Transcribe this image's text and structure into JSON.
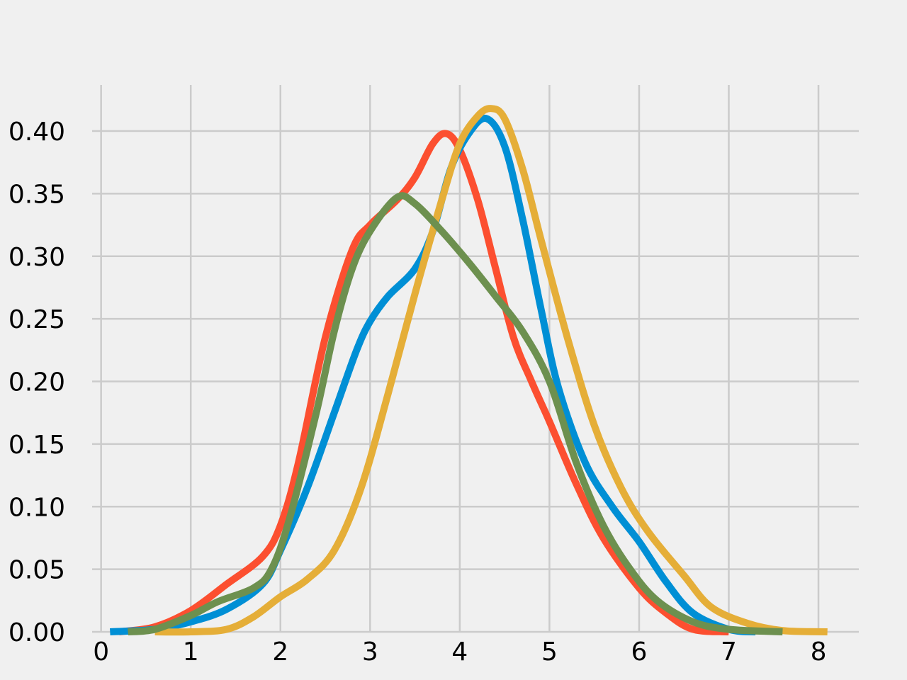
{
  "chart_data": {
    "type": "line",
    "title": "",
    "xlabel": "",
    "ylabel": "",
    "xlim": [
      -0.1,
      8.45
    ],
    "ylim": [
      0,
      0.4368
    ],
    "x_ticks": [
      0,
      1,
      2,
      3,
      4,
      5,
      6,
      7,
      8
    ],
    "x_tick_labels": [
      "0",
      "1",
      "2",
      "3",
      "4",
      "5",
      "6",
      "7",
      "8"
    ],
    "y_ticks": [
      0.0,
      0.05,
      0.1,
      0.15,
      0.2,
      0.25,
      0.3,
      0.35,
      0.4
    ],
    "y_tick_labels": [
      "0.00",
      "0.05",
      "0.10",
      "0.15",
      "0.20",
      "0.25",
      "0.30",
      "0.35",
      "0.40"
    ],
    "grid": true,
    "legend": "none",
    "series": [
      {
        "color": "#fc4f30",
        "points": [
          [
            0.2,
            0.0
          ],
          [
            0.6,
            0.004
          ],
          [
            1.0,
            0.017
          ],
          [
            1.4,
            0.038
          ],
          [
            1.8,
            0.06
          ],
          [
            2.0,
            0.085
          ],
          [
            2.2,
            0.135
          ],
          [
            2.5,
            0.235
          ],
          [
            2.8,
            0.305
          ],
          [
            3.0,
            0.325
          ],
          [
            3.3,
            0.345
          ],
          [
            3.5,
            0.363
          ],
          [
            3.7,
            0.39
          ],
          [
            3.85,
            0.398
          ],
          [
            4.0,
            0.385
          ],
          [
            4.2,
            0.345
          ],
          [
            4.4,
            0.29
          ],
          [
            4.6,
            0.235
          ],
          [
            4.8,
            0.2
          ],
          [
            5.0,
            0.168
          ],
          [
            5.3,
            0.118
          ],
          [
            5.6,
            0.075
          ],
          [
            6.0,
            0.035
          ],
          [
            6.3,
            0.015
          ],
          [
            6.6,
            0.002
          ],
          [
            7.0,
            0.0
          ]
        ]
      },
      {
        "color": "#008fd5",
        "points": [
          [
            0.1,
            0.0
          ],
          [
            0.6,
            0.002
          ],
          [
            1.0,
            0.008
          ],
          [
            1.4,
            0.018
          ],
          [
            1.8,
            0.038
          ],
          [
            2.0,
            0.065
          ],
          [
            2.3,
            0.115
          ],
          [
            2.6,
            0.175
          ],
          [
            2.85,
            0.225
          ],
          [
            3.0,
            0.248
          ],
          [
            3.2,
            0.268
          ],
          [
            3.5,
            0.29
          ],
          [
            3.7,
            0.32
          ],
          [
            3.9,
            0.37
          ],
          [
            4.1,
            0.398
          ],
          [
            4.3,
            0.41
          ],
          [
            4.5,
            0.388
          ],
          [
            4.7,
            0.33
          ],
          [
            4.9,
            0.26
          ],
          [
            5.1,
            0.195
          ],
          [
            5.4,
            0.135
          ],
          [
            5.7,
            0.1
          ],
          [
            6.0,
            0.072
          ],
          [
            6.3,
            0.04
          ],
          [
            6.6,
            0.015
          ],
          [
            7.0,
            0.002
          ],
          [
            7.3,
            0.0
          ]
        ]
      },
      {
        "color": "#e5ae38",
        "points": [
          [
            0.6,
            0.0
          ],
          [
            1.0,
            0.0
          ],
          [
            1.4,
            0.002
          ],
          [
            1.7,
            0.012
          ],
          [
            2.0,
            0.028
          ],
          [
            2.3,
            0.042
          ],
          [
            2.6,
            0.065
          ],
          [
            2.9,
            0.115
          ],
          [
            3.2,
            0.19
          ],
          [
            3.5,
            0.27
          ],
          [
            3.8,
            0.345
          ],
          [
            4.0,
            0.39
          ],
          [
            4.2,
            0.412
          ],
          [
            4.35,
            0.418
          ],
          [
            4.5,
            0.41
          ],
          [
            4.7,
            0.37
          ],
          [
            4.9,
            0.315
          ],
          [
            5.2,
            0.235
          ],
          [
            5.5,
            0.165
          ],
          [
            5.8,
            0.115
          ],
          [
            6.1,
            0.08
          ],
          [
            6.5,
            0.045
          ],
          [
            6.8,
            0.02
          ],
          [
            7.2,
            0.007
          ],
          [
            7.6,
            0.001
          ],
          [
            8.1,
            0.0
          ]
        ]
      },
      {
        "color": "#6d904f",
        "points": [
          [
            0.3,
            0.0
          ],
          [
            0.6,
            0.002
          ],
          [
            1.0,
            0.013
          ],
          [
            1.3,
            0.024
          ],
          [
            1.7,
            0.035
          ],
          [
            1.9,
            0.05
          ],
          [
            2.1,
            0.09
          ],
          [
            2.4,
            0.175
          ],
          [
            2.6,
            0.24
          ],
          [
            2.8,
            0.29
          ],
          [
            3.0,
            0.32
          ],
          [
            3.3,
            0.347
          ],
          [
            3.5,
            0.342
          ],
          [
            3.8,
            0.32
          ],
          [
            4.1,
            0.295
          ],
          [
            4.4,
            0.268
          ],
          [
            4.7,
            0.24
          ],
          [
            5.0,
            0.2
          ],
          [
            5.3,
            0.135
          ],
          [
            5.6,
            0.085
          ],
          [
            5.9,
            0.05
          ],
          [
            6.2,
            0.025
          ],
          [
            6.6,
            0.008
          ],
          [
            7.0,
            0.002
          ],
          [
            7.6,
            0.0
          ]
        ]
      }
    ]
  }
}
